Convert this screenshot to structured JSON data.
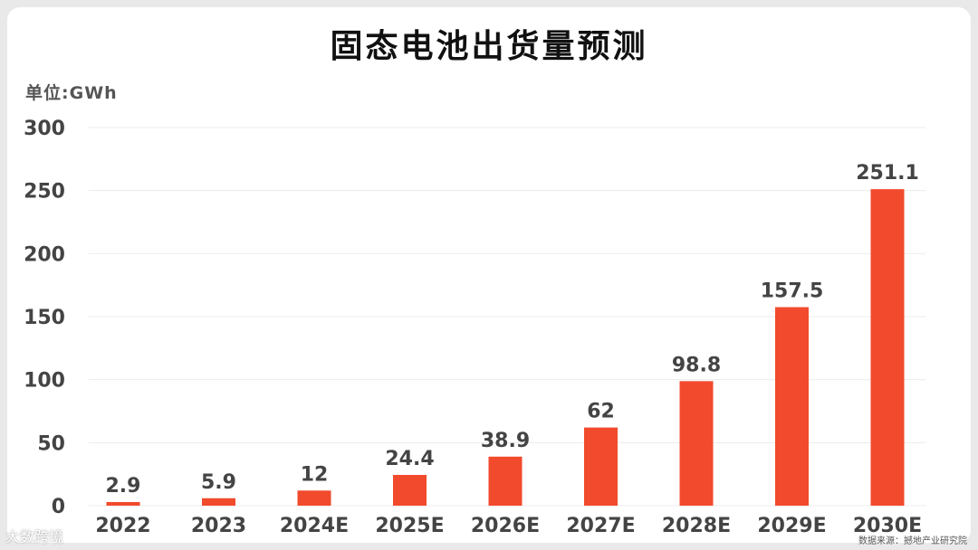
{
  "title": "固态电池出货量预测",
  "unit_label": "单位:GWh",
  "source": "数据来源：撼地产业研究院",
  "brand": "大数跨境",
  "colors": {
    "bar": "#f24a2c",
    "axis_text": "#444444",
    "grid": "#ececec"
  },
  "chart_data": {
    "type": "bar",
    "title": "固态电池出货量预测",
    "ylabel": "单位:GWh",
    "xlabel": "",
    "categories": [
      "2022",
      "2023",
      "2024E",
      "2025E",
      "2026E",
      "2027E",
      "2028E",
      "2029E",
      "2030E"
    ],
    "values": [
      2.9,
      5.9,
      12,
      24.4,
      38.9,
      62,
      98.8,
      157.5,
      251.1
    ],
    "data_labels": [
      "2.9",
      "5.9",
      "12",
      "24.4",
      "38.9",
      "62",
      "98.8",
      "157.5",
      "251.1"
    ],
    "ylim": [
      0,
      300
    ],
    "yticks": [
      "0",
      "50",
      "100",
      "150",
      "200",
      "250",
      "300"
    ],
    "grid": true,
    "legend": "none"
  }
}
